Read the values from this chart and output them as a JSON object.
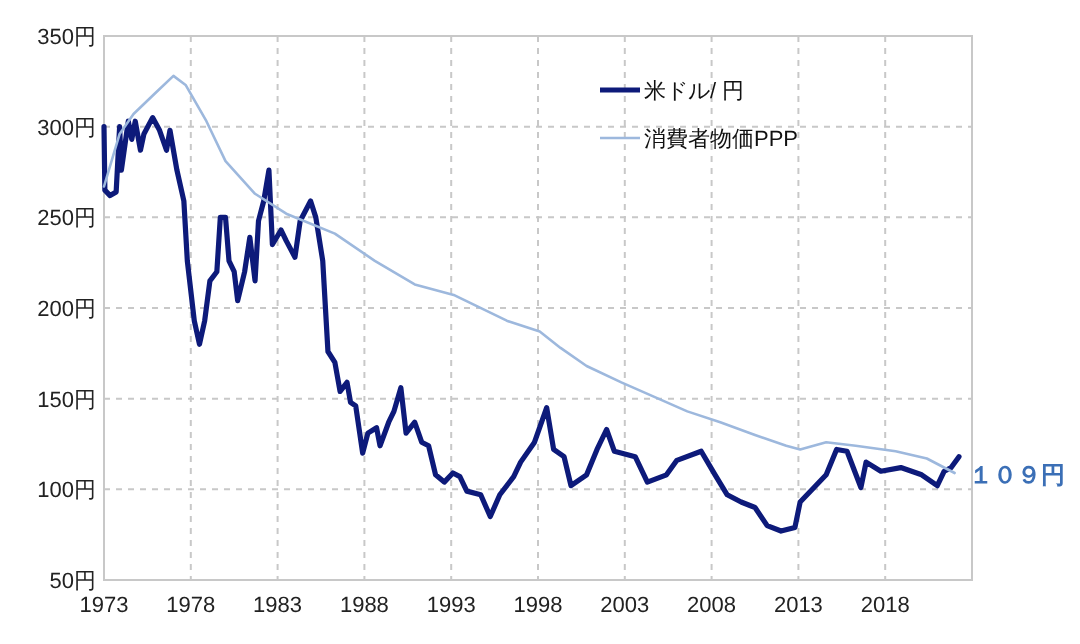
{
  "chart_data": {
    "type": "line",
    "xlim": [
      1973,
      2023
    ],
    "ylim": [
      50,
      350
    ],
    "xticks": [
      1973,
      1978,
      1983,
      1988,
      1993,
      1998,
      2003,
      2008,
      2013,
      2018
    ],
    "yticks": [
      {
        "value": 50,
        "label": "50円"
      },
      {
        "value": 100,
        "label": "100円"
      },
      {
        "value": 150,
        "label": "150円"
      },
      {
        "value": 200,
        "label": "200円"
      },
      {
        "value": 250,
        "label": "250円"
      },
      {
        "value": 300,
        "label": "300円"
      },
      {
        "value": 350,
        "label": "350円"
      }
    ],
    "grid": true,
    "legend": "top right",
    "line_style": "solid",
    "series": [
      {
        "name": "米ドル/ 円",
        "color": "#0d1a7a",
        "x": [
          1973.0,
          1973.05,
          1973.35,
          1973.7,
          1973.9,
          1974.0,
          1974.4,
          1974.6,
          1974.8,
          1975.1,
          1975.3,
          1975.8,
          1976.2,
          1976.6,
          1976.8,
          1977.2,
          1977.6,
          1977.8,
          1978.2,
          1978.5,
          1978.8,
          1979.1,
          1979.5,
          1979.7,
          1980.0,
          1980.2,
          1980.5,
          1980.7,
          1981.1,
          1981.4,
          1981.7,
          1981.9,
          1982.2,
          1982.5,
          1982.7,
          1983.2,
          1983.5,
          1984.0,
          1984.3,
          1984.9,
          1985.2,
          1985.6,
          1985.9,
          1986.3,
          1986.6,
          1987.0,
          1987.2,
          1987.5,
          1987.9,
          1988.2,
          1988.7,
          1988.9,
          1989.4,
          1989.7,
          1990.1,
          1990.4,
          1990.9,
          1991.3,
          1991.7,
          1992.1,
          1992.6,
          1993.1,
          1993.5,
          1993.9,
          1994.7,
          1995.25,
          1995.8,
          1996.6,
          1997.0,
          1997.8,
          1998.5,
          1998.9,
          1999.5,
          1999.9,
          2000.8,
          2001.4,
          2001.95,
          2002.4,
          2003.6,
          2004.3,
          2005.4,
          2006.0,
          2007.4,
          2008.2,
          2008.9,
          2009.7,
          2010.5,
          2011.2,
          2012.0,
          2012.8,
          2013.1,
          2013.9,
          2014.6,
          2015.2,
          2015.8,
          2016.6,
          2016.9,
          2017.75,
          2018.9,
          2020.1,
          2021.0,
          2021.4,
          2021.8,
          2022.25
        ],
        "values": [
          300,
          265,
          262,
          264,
          300,
          276,
          303,
          293,
          303,
          287,
          296,
          305,
          298,
          287,
          298,
          276,
          259,
          226,
          193,
          180,
          193,
          215,
          220,
          250,
          250,
          226,
          220,
          204,
          220,
          239,
          215,
          248,
          259,
          276,
          235,
          243,
          237,
          228,
          248,
          259,
          250,
          226,
          176,
          170,
          154,
          159,
          148,
          146,
          120,
          131,
          134,
          124,
          137,
          143,
          156,
          131,
          137,
          126,
          124,
          108,
          104,
          109,
          107,
          99,
          97,
          85,
          97,
          107,
          115,
          126,
          145,
          122,
          118,
          102,
          108,
          122,
          133,
          121,
          118,
          104,
          108,
          116,
          121,
          108,
          97,
          93,
          90,
          80,
          77,
          79,
          93,
          101,
          108,
          122,
          121,
          101,
          115,
          110,
          112,
          108,
          102,
          110,
          112,
          118
        ]
      },
      {
        "name": "消費者物価PPP",
        "color": "#9db8dd",
        "x": [
          1973.0,
          1973.9,
          1974.7,
          1975.9,
          1977.0,
          1977.7,
          1978.9,
          1980.0,
          1981.7,
          1983.5,
          1986.3,
          1988.6,
          1990.9,
          1993.2,
          1996.2,
          1998.1,
          1999.3,
          2000.8,
          2002.8,
          2004.7,
          2006.6,
          2008.5,
          2010.5,
          2012.3,
          2013.1,
          2014.6,
          2016.3,
          2018.6,
          2020.4,
          2022.0
        ],
        "values": [
          267,
          296,
          307,
          318,
          328,
          323,
          303,
          281,
          263,
          252,
          241,
          226,
          213,
          207,
          193,
          187,
          178,
          168,
          159,
          151,
          143,
          137,
          130,
          124,
          122,
          126,
          124,
          121,
          117,
          109
        ]
      }
    ],
    "annotations": [
      {
        "text": "１０９円",
        "x": 2022.0,
        "y": 109
      }
    ]
  }
}
